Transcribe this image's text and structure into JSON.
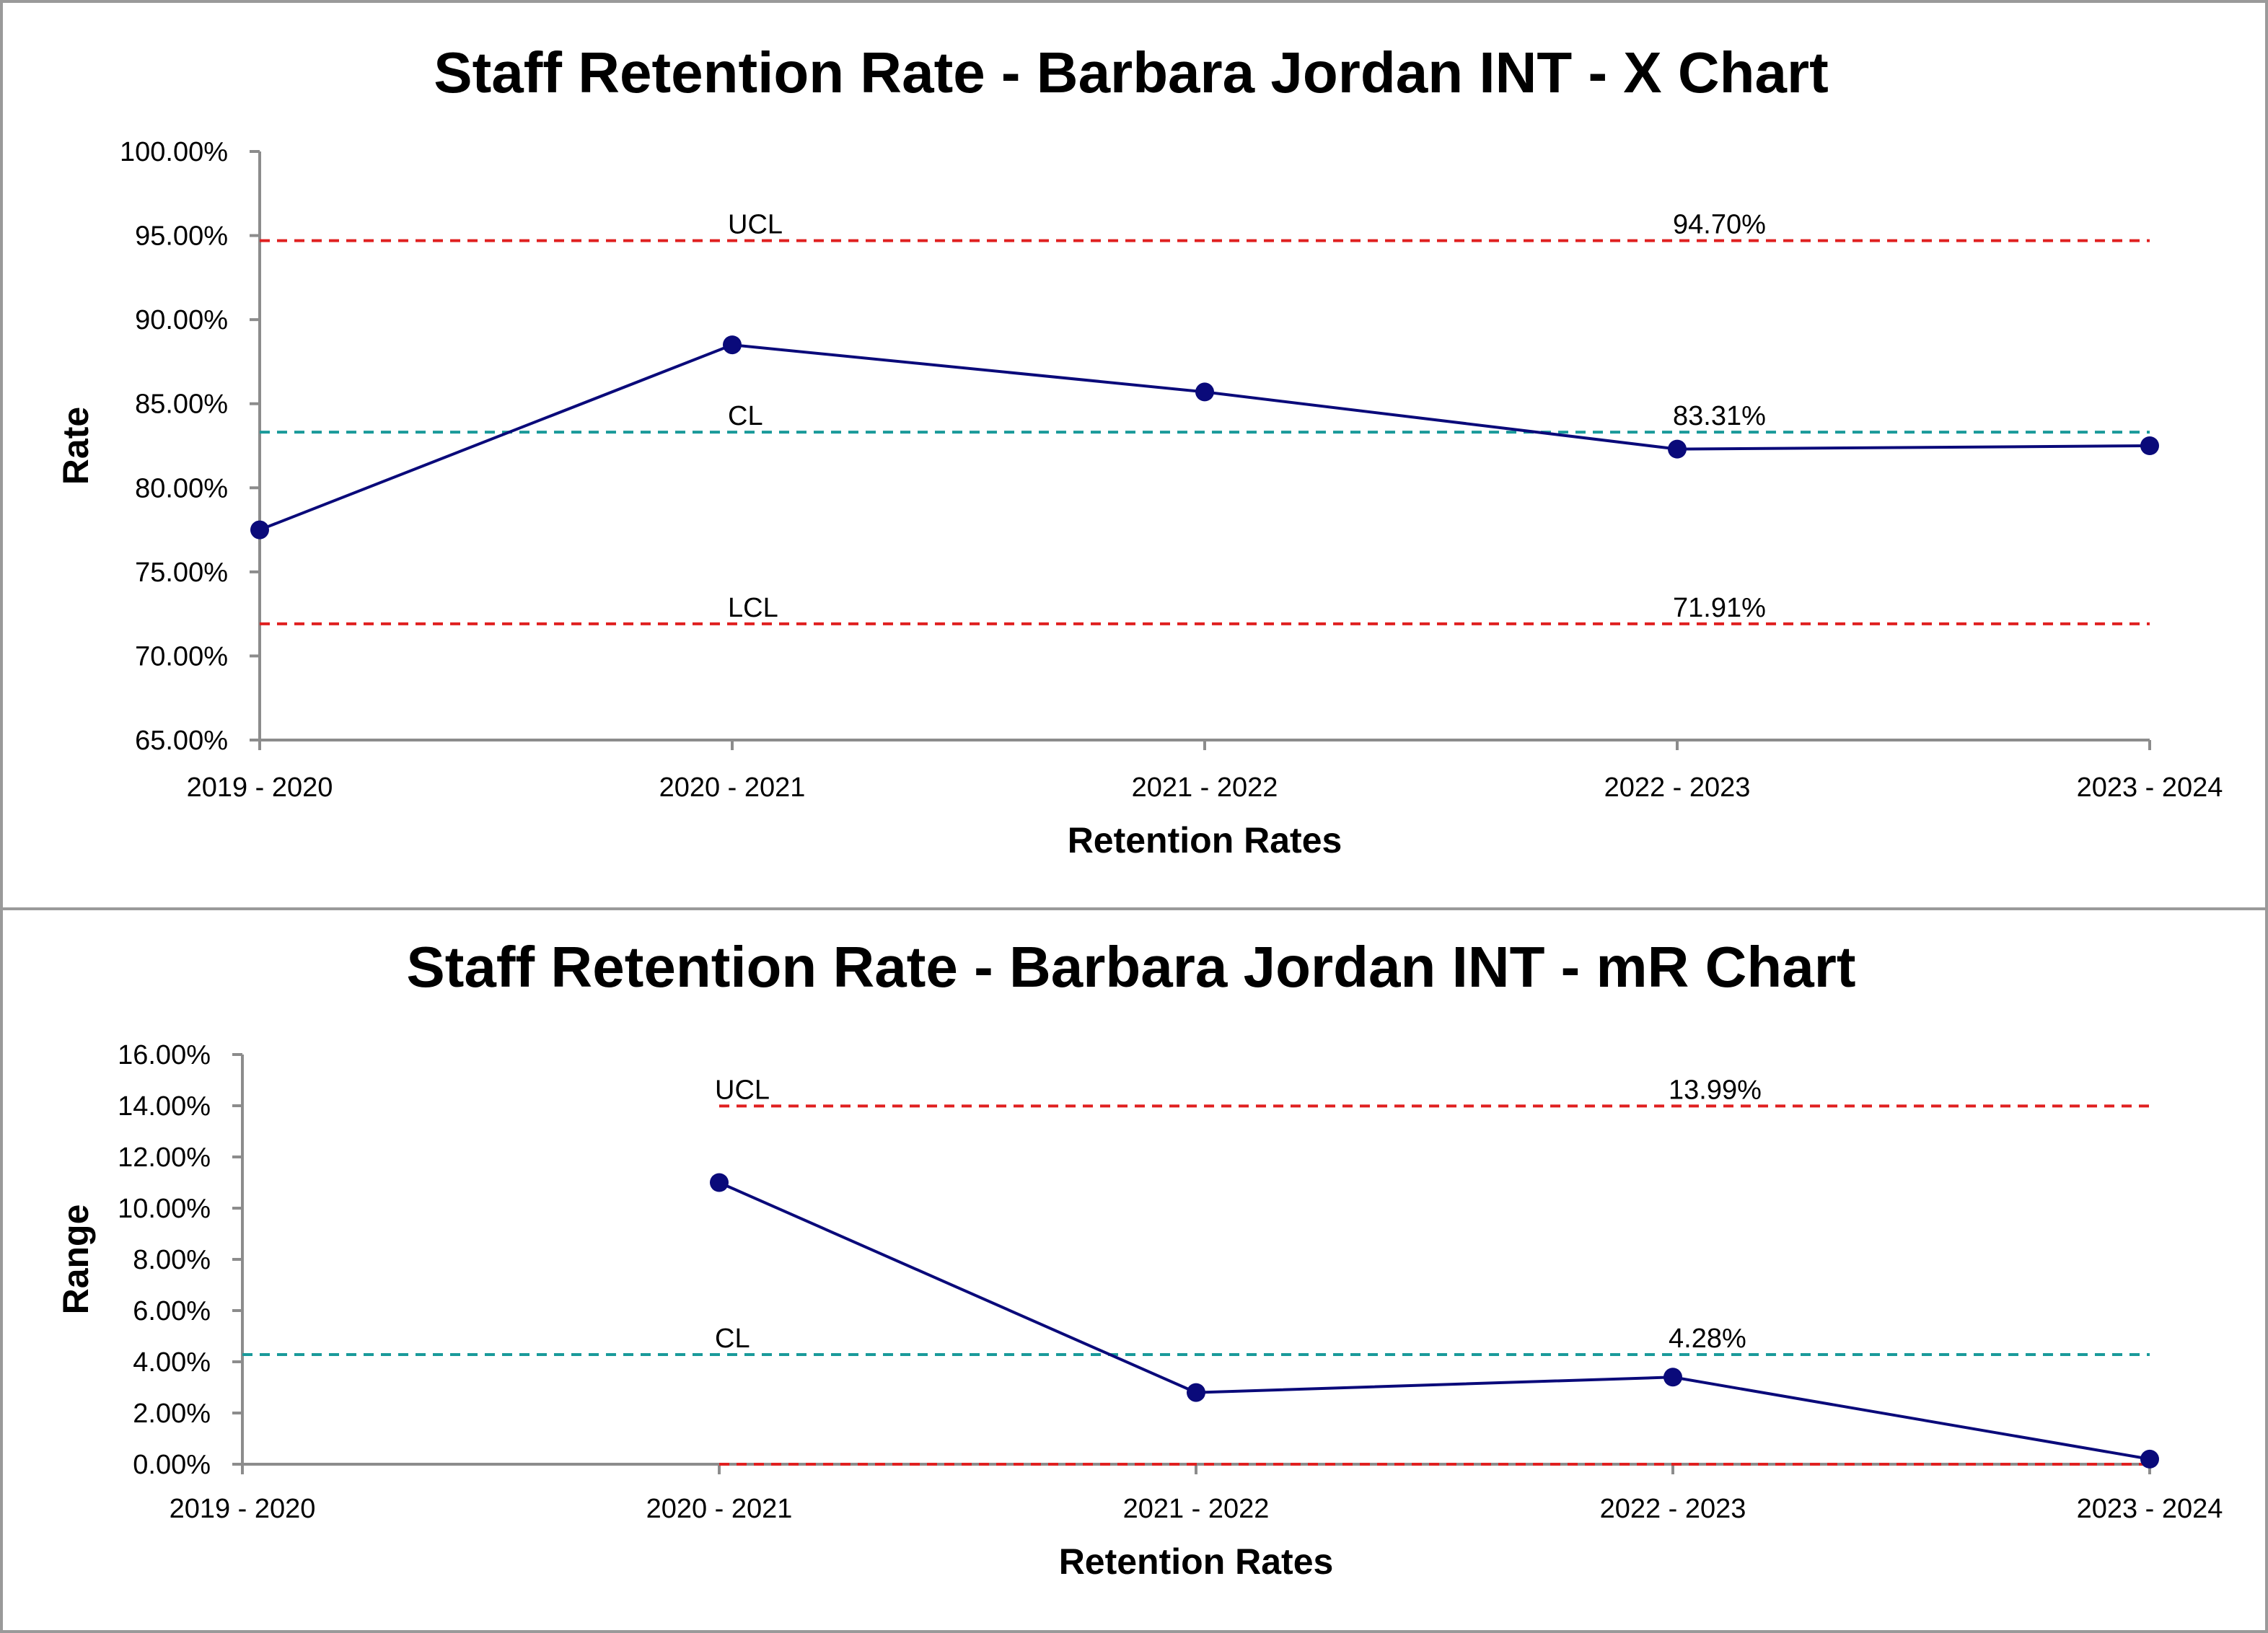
{
  "chart_data": [
    {
      "type": "line",
      "title": "Staff Retention Rate - Barbara Jordan INT - X Chart",
      "xlabel": "Retention Rates",
      "ylabel": "Rate",
      "ylim": [
        0.65,
        1.0
      ],
      "yticks": [
        0.65,
        0.7,
        0.75,
        0.8,
        0.85,
        0.9,
        0.95,
        1.0
      ],
      "ytick_labels": [
        "65.00%",
        "70.00%",
        "75.00%",
        "80.00%",
        "85.00%",
        "90.00%",
        "95.00%",
        "100.00%"
      ],
      "categories": [
        "2019 - 2020",
        "2020 - 2021",
        "2021 - 2022",
        "2022 - 2023",
        "2023 - 2024"
      ],
      "series": [
        {
          "values": [
            0.775,
            0.885,
            0.857,
            0.823,
            0.825
          ],
          "color": "#0a0a7a"
        }
      ],
      "limits": [
        {
          "name": "UCL",
          "value": 0.947,
          "label": "94.70%",
          "color": "#e02020",
          "start_index": 0
        },
        {
          "name": "CL",
          "value": 0.8331,
          "label": "83.31%",
          "color": "#1a9a9a",
          "start_index": 0
        },
        {
          "name": "LCL",
          "value": 0.7191,
          "label": "71.91%",
          "color": "#e02020",
          "start_index": 0
        }
      ],
      "grid": false,
      "legend": "none"
    },
    {
      "type": "line",
      "title": "Staff Retention Rate - Barbara Jordan INT - mR Chart",
      "xlabel": "Retention Rates",
      "ylabel": "Range",
      "ylim": [
        0.0,
        0.16
      ],
      "yticks": [
        0.0,
        0.02,
        0.04,
        0.06,
        0.08,
        0.1,
        0.12,
        0.14,
        0.16
      ],
      "ytick_labels": [
        "0.00%",
        "2.00%",
        "4.00%",
        "6.00%",
        "8.00%",
        "10.00%",
        "12.00%",
        "14.00%",
        "16.00%"
      ],
      "categories": [
        "2019 - 2020",
        "2020 - 2021",
        "2021 - 2022",
        "2022 - 2023",
        "2023 - 2024"
      ],
      "series": [
        {
          "values": [
            null,
            0.11,
            0.028,
            0.034,
            0.002
          ],
          "color": "#0a0a7a"
        }
      ],
      "limits": [
        {
          "name": "UCL",
          "value": 0.1399,
          "label": "13.99%",
          "color": "#e02020",
          "start_index": 1
        },
        {
          "name": "CL",
          "value": 0.0428,
          "label": "4.28%",
          "color": "#1a9a9a",
          "start_index": 0
        },
        {
          "name": "",
          "value": 0.0,
          "label": "",
          "color": "#e02020",
          "start_index": 1
        }
      ],
      "grid": false,
      "legend": "none"
    }
  ]
}
